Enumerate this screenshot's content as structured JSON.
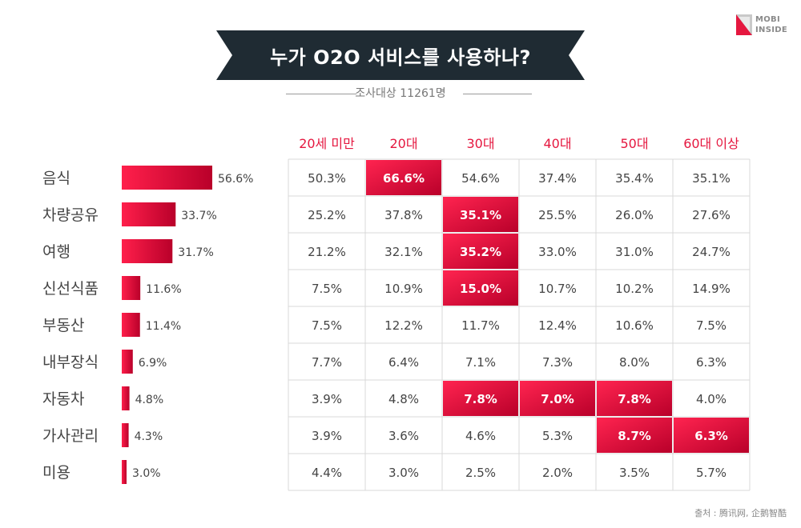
{
  "logo": {
    "line1": "MOBI",
    "line2": "INSIDE"
  },
  "title": "누가 O2O 서비스를 사용하나?",
  "subtitle": "조사대상 11261명",
  "source": "출처 : 腾讯网, 企鹅智酷",
  "colors": {
    "accent": "#e5173f",
    "accent_dark": "#b9002a",
    "banner": "#1f2b33",
    "header_text": "#e5173f",
    "body_text": "#444444",
    "grid": "#d9d9d9"
  },
  "chart_data": {
    "type": "table",
    "overall": {
      "categories": [
        "음식",
        "차량공유",
        "여행",
        "신선식품",
        "부동산",
        "내부장식",
        "자동차",
        "가사관리",
        "미용"
      ],
      "values": [
        56.6,
        33.7,
        31.7,
        11.6,
        11.4,
        6.9,
        4.8,
        4.3,
        3.0
      ],
      "labels": [
        "56.6%",
        "33.7%",
        "31.7%",
        "11.6%",
        "11.4%",
        "6.9%",
        "4.8%",
        "4.3%",
        "3.0%"
      ],
      "xlim": [
        0,
        56.6
      ]
    },
    "columns": [
      "20세 미만",
      "20대",
      "30대",
      "40대",
      "50대",
      "60대 이상"
    ],
    "rows": [
      {
        "category": "음식",
        "values": [
          "50.3%",
          "66.6%",
          "54.6%",
          "37.4%",
          "35.4%",
          "35.1%"
        ],
        "highlight": [
          false,
          true,
          false,
          false,
          false,
          false
        ]
      },
      {
        "category": "차량공유",
        "values": [
          "25.2%",
          "37.8%",
          "35.1%",
          "25.5%",
          "26.0%",
          "27.6%"
        ],
        "highlight": [
          false,
          false,
          true,
          false,
          false,
          false
        ]
      },
      {
        "category": "여행",
        "values": [
          "21.2%",
          "32.1%",
          "35.2%",
          "33.0%",
          "31.0%",
          "24.7%"
        ],
        "highlight": [
          false,
          false,
          true,
          false,
          false,
          false
        ]
      },
      {
        "category": "신선식품",
        "values": [
          "7.5%",
          "10.9%",
          "15.0%",
          "10.7%",
          "10.2%",
          "14.9%"
        ],
        "highlight": [
          false,
          false,
          true,
          false,
          false,
          false
        ]
      },
      {
        "category": "부동산",
        "values": [
          "7.5%",
          "12.2%",
          "11.7%",
          "12.4%",
          "10.6%",
          "7.5%"
        ],
        "highlight": [
          false,
          false,
          false,
          false,
          false,
          false
        ]
      },
      {
        "category": "내부장식",
        "values": [
          "7.7%",
          "6.4%",
          "7.1%",
          "7.3%",
          "8.0%",
          "6.3%"
        ],
        "highlight": [
          false,
          false,
          false,
          false,
          false,
          false
        ]
      },
      {
        "category": "자동차",
        "values": [
          "3.9%",
          "4.8%",
          "7.8%",
          "7.0%",
          "7.8%",
          "4.0%"
        ],
        "highlight": [
          false,
          false,
          true,
          true,
          true,
          false
        ]
      },
      {
        "category": "가사관리",
        "values": [
          "3.9%",
          "3.6%",
          "4.6%",
          "5.3%",
          "8.7%",
          "6.3%"
        ],
        "highlight": [
          false,
          false,
          false,
          false,
          true,
          true
        ]
      },
      {
        "category": "미용",
        "values": [
          "4.4%",
          "3.0%",
          "2.5%",
          "2.0%",
          "3.5%",
          "5.7%"
        ],
        "highlight": [
          false,
          false,
          false,
          false,
          false,
          false
        ]
      }
    ]
  }
}
